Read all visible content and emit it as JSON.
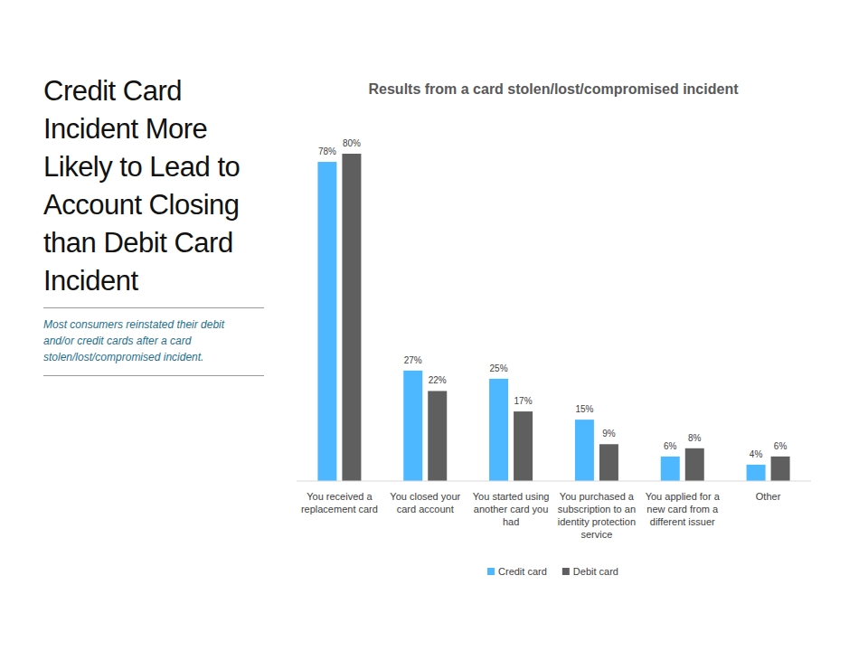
{
  "slide": {
    "headline": "Credit Card Incident More Likely to Lead to Account Closing than Debit Card Incident",
    "note": "Most consumers reinstated their debit and/or credit cards after a card stolen/lost/compromised incident."
  },
  "chart_data": {
    "type": "bar",
    "title": "Results from a card stolen/lost/compromised incident",
    "categories": [
      "You received a replacement card",
      "You closed your card account",
      "You started using another card you had",
      "You purchased a subscription to an identity protection service",
      "You applied for a new card from a different issuer",
      "Other"
    ],
    "series": [
      {
        "name": "Credit card",
        "color": "#4db8ff",
        "values": [
          78,
          27,
          25,
          15,
          6,
          4
        ],
        "value_labels": [
          "78%",
          "27%",
          "25%",
          "15%",
          "6%",
          "4%"
        ]
      },
      {
        "name": "Debit card",
        "color": "#5f5f5f",
        "values": [
          80,
          22,
          17,
          9,
          8,
          6
        ],
        "value_labels": [
          "80%",
          "22%",
          "17%",
          "9%",
          "8%",
          "6%"
        ]
      }
    ],
    "ylim": [
      0,
      80
    ],
    "grid": false,
    "data_labels": true,
    "tick_labels": "x",
    "legend": "bottom"
  }
}
